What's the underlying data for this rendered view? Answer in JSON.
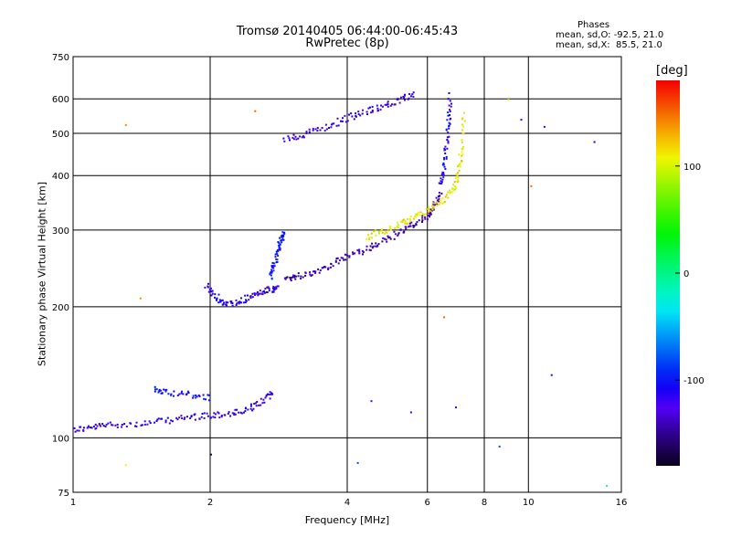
{
  "header": {
    "title": "Tromsø 20140405 06:44:00-06:45:43",
    "subtitle": "RwPretec (8p)",
    "stats_title": "Phases",
    "stats_o": "mean, sd,O: -92.5, 21.0",
    "stats_x": "mean, sd,X:  85.5, 21.0"
  },
  "colorbar": {
    "unit": "[deg]",
    "range": [
      -180,
      180
    ],
    "ticks": [
      "100",
      "0",
      "-100"
    ],
    "tick_values": [
      100,
      0,
      -100
    ]
  },
  "chart_data": {
    "type": "scatter",
    "title": "Tromsø 20140405 06:44:00-06:45:43",
    "subtitle": "RwPretec (8p)",
    "xlabel": "Frequency [MHz]",
    "ylabel": "Stationary phase Virtual Height [km]",
    "xscale": "log",
    "yscale": "log",
    "xlim": [
      1,
      16
    ],
    "ylim": [
      75,
      750
    ],
    "xticks": [
      1,
      2,
      4,
      6,
      8,
      10,
      16
    ],
    "xtick_labels": [
      "1",
      "2",
      "4",
      "6",
      "8",
      "10",
      "16"
    ],
    "yticks": [
      75,
      100,
      200,
      300,
      400,
      500,
      600,
      750
    ],
    "ytick_labels": [
      "75",
      "100",
      "200",
      "300",
      "400",
      "500",
      "600",
      "750"
    ],
    "grid": true,
    "color_encoding": "phase [deg]",
    "traces": [
      {
        "x": [
          1.0,
          1.1,
          1.2,
          1.4,
          1.6,
          1.8,
          2.0,
          2.2,
          2.4,
          2.6,
          2.75
        ],
        "y": [
          105,
          106,
          108,
          108,
          110,
          112,
          113,
          114,
          116,
          122,
          128
        ],
        "phase": -120
      },
      {
        "x": [
          1.5,
          1.6,
          1.8,
          2.0
        ],
        "y": [
          130,
          128,
          126,
          124
        ],
        "phase": -100
      },
      {
        "x": [
          1.95,
          2.05,
          2.15,
          2.3,
          2.45,
          2.6,
          2.75,
          2.8
        ],
        "y": [
          225,
          212,
          203,
          205,
          212,
          218,
          220,
          222
        ],
        "phase": -115
      },
      {
        "x": [
          2.7,
          2.75,
          2.8,
          2.85,
          2.9
        ],
        "y": [
          235,
          250,
          270,
          285,
          300
        ],
        "phase": -100
      },
      {
        "x": [
          2.9,
          3.1,
          3.4,
          3.7,
          4.0,
          4.4,
          4.8,
          5.2,
          5.6,
          6.0,
          6.2,
          6.4
        ],
        "y": [
          232,
          236,
          242,
          252,
          262,
          272,
          284,
          298,
          312,
          325,
          345,
          370
        ],
        "phase": -140
      },
      {
        "x": [
          6.4,
          6.5,
          6.6,
          6.65,
          6.7
        ],
        "y": [
          380,
          420,
          480,
          540,
          620
        ],
        "phase": -110
      },
      {
        "x": [
          4.4,
          4.8,
          5.2,
          5.6,
          6.0,
          6.4,
          6.8,
          7.0,
          7.1,
          7.2
        ],
        "y": [
          290,
          300,
          310,
          322,
          336,
          350,
          372,
          405,
          460,
          560
        ],
        "phase": 110
      },
      {
        "x": [
          2.9,
          3.2,
          3.6,
          4.0,
          4.4,
          4.8,
          5.2,
          5.6
        ],
        "y": [
          485,
          500,
          520,
          545,
          565,
          580,
          598,
          620
        ],
        "phase": -125
      }
    ],
    "scatter_points": [
      {
        "x": 1.3,
        "y": 525,
        "phase": 140
      },
      {
        "x": 1.4,
        "y": 210,
        "phase": 140
      },
      {
        "x": 1.3,
        "y": 87,
        "phase": 110
      },
      {
        "x": 2.5,
        "y": 565,
        "phase": 150
      },
      {
        "x": 2.0,
        "y": 92,
        "phase": -170
      },
      {
        "x": 4.2,
        "y": 88,
        "phase": -80
      },
      {
        "x": 4.5,
        "y": 122,
        "phase": -120
      },
      {
        "x": 5.5,
        "y": 115,
        "phase": -120
      },
      {
        "x": 6.5,
        "y": 190,
        "phase": 150
      },
      {
        "x": 6.9,
        "y": 118,
        "phase": -120
      },
      {
        "x": 8.6,
        "y": 96,
        "phase": -80
      },
      {
        "x": 9.0,
        "y": 600,
        "phase": 100
      },
      {
        "x": 9.6,
        "y": 540,
        "phase": -120
      },
      {
        "x": 10.1,
        "y": 380,
        "phase": 150
      },
      {
        "x": 10.8,
        "y": 520,
        "phase": -120
      },
      {
        "x": 11.2,
        "y": 140,
        "phase": -120
      },
      {
        "x": 13.9,
        "y": 480,
        "phase": -110
      },
      {
        "x": 14.8,
        "y": 78,
        "phase": -20
      }
    ]
  }
}
